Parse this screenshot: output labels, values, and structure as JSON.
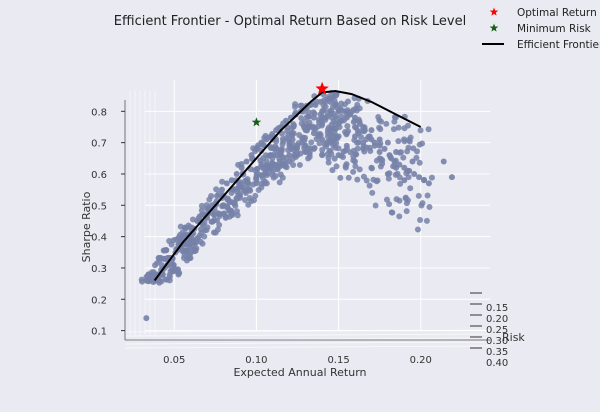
{
  "chart_data": {
    "type": "scatter",
    "title": "Efficient Frontier - Optimal Return Based on Risk Level",
    "xlabel": "Expected Annual Return",
    "ylabel": "Sharpe Ratio",
    "zlabel": "Risk",
    "xlim": [
      0.02,
      0.23
    ],
    "ylim": [
      0.07,
      0.9
    ],
    "x_ticks": [
      0.05,
      0.1,
      0.15,
      0.2
    ],
    "x_tick_labels": [
      "0.05",
      "0.10",
      "0.15",
      "0.20"
    ],
    "y_ticks": [
      0.1,
      0.2,
      0.3,
      0.4,
      0.5,
      0.6,
      0.7,
      0.8
    ],
    "y_tick_labels": [
      "0.1",
      "0.2",
      "0.3",
      "0.4",
      "0.5",
      "0.6",
      "0.7",
      "0.8"
    ],
    "z_tick_labels": [
      "0.15",
      "0.20",
      "0.25",
      "0.30",
      "0.35",
      "0.40"
    ],
    "grid": true,
    "legend_position": "top-right",
    "legend": [
      {
        "label": "Optimal Return",
        "kind": "star",
        "color": "#ff0000"
      },
      {
        "label": "Minimum Risk",
        "kind": "star",
        "color": "#1a5c1a"
      },
      {
        "label": "Efficient Frontier",
        "kind": "line",
        "color": "#000000"
      }
    ],
    "colors": {
      "background": "#eaeaf2",
      "points": "#7581a8",
      "frontier": "#000000",
      "optimal": "#ff0000",
      "min_risk": "#1a5c1a",
      "grid": "#ffffff",
      "text": "#333333"
    },
    "series": [
      {
        "name": "Efficient Frontier",
        "role": "frontier",
        "x": [
          0.038,
          0.045,
          0.055,
          0.065,
          0.075,
          0.085,
          0.095,
          0.105,
          0.115,
          0.125,
          0.133,
          0.14,
          0.148,
          0.158,
          0.17,
          0.185,
          0.2
        ],
        "y": [
          0.26,
          0.31,
          0.38,
          0.44,
          0.5,
          0.56,
          0.62,
          0.68,
          0.74,
          0.79,
          0.83,
          0.86,
          0.865,
          0.855,
          0.83,
          0.79,
          0.75
        ]
      },
      {
        "name": "Optimal Return",
        "role": "optimal",
        "x": [
          0.14
        ],
        "y": [
          0.872
        ]
      },
      {
        "name": "Minimum Risk",
        "role": "min_risk",
        "x": [
          0.1
        ],
        "y": [
          0.765
        ]
      }
    ],
    "scatter_points": {
      "x": [
        0.033,
        0.04,
        0.043,
        0.046,
        0.049,
        0.052,
        0.055,
        0.058,
        0.061,
        0.064,
        0.067,
        0.07,
        0.073,
        0.076,
        0.079,
        0.082,
        0.085,
        0.088,
        0.091,
        0.094,
        0.097,
        0.1,
        0.103,
        0.106,
        0.109,
        0.112,
        0.115,
        0.118,
        0.121,
        0.124,
        0.127,
        0.13,
        0.133,
        0.136,
        0.139,
        0.142,
        0.145,
        0.148,
        0.151,
        0.154,
        0.157,
        0.16,
        0.163,
        0.166,
        0.169,
        0.172,
        0.175,
        0.178,
        0.181,
        0.184,
        0.187,
        0.19,
        0.193,
        0.196,
        0.199,
        0.202,
        0.205,
        0.214,
        0.219,
        0.07,
        0.08,
        0.09,
        0.1,
        0.11,
        0.12,
        0.13,
        0.14,
        0.15,
        0.16,
        0.085,
        0.095,
        0.105,
        0.115,
        0.125,
        0.135,
        0.145,
        0.155,
        0.165,
        0.175,
        0.185,
        0.09,
        0.1,
        0.11,
        0.12,
        0.13,
        0.14,
        0.15,
        0.16,
        0.17,
        0.18,
        0.19,
        0.105,
        0.115,
        0.125,
        0.135,
        0.145,
        0.155,
        0.165,
        0.175,
        0.12,
        0.13,
        0.14,
        0.15,
        0.16,
        0.17,
        0.135,
        0.145,
        0.155,
        0.165,
        0.175,
        0.185,
        0.195,
        0.14,
        0.15,
        0.16,
        0.17,
        0.18,
        0.112,
        0.122,
        0.132,
        0.142,
        0.152,
        0.162,
        0.172,
        0.182,
        0.192
      ],
      "y": [
        0.14,
        0.27,
        0.28,
        0.31,
        0.33,
        0.36,
        0.38,
        0.4,
        0.42,
        0.45,
        0.47,
        0.49,
        0.5,
        0.53,
        0.55,
        0.57,
        0.58,
        0.6,
        0.62,
        0.64,
        0.66,
        0.68,
        0.7,
        0.71,
        0.72,
        0.74,
        0.75,
        0.77,
        0.78,
        0.79,
        0.8,
        0.81,
        0.82,
        0.82,
        0.83,
        0.83,
        0.83,
        0.82,
        0.81,
        0.8,
        0.79,
        0.77,
        0.76,
        0.74,
        0.72,
        0.7,
        0.69,
        0.68,
        0.66,
        0.64,
        0.63,
        0.62,
        0.61,
        0.6,
        0.59,
        0.58,
        0.57,
        0.64,
        0.59,
        0.46,
        0.5,
        0.56,
        0.59,
        0.63,
        0.66,
        0.69,
        0.71,
        0.72,
        0.72,
        0.51,
        0.55,
        0.6,
        0.63,
        0.66,
        0.68,
        0.7,
        0.69,
        0.68,
        0.65,
        0.62,
        0.53,
        0.57,
        0.61,
        0.64,
        0.67,
        0.66,
        0.66,
        0.64,
        0.62,
        0.6,
        0.58,
        0.62,
        0.66,
        0.69,
        0.73,
        0.74,
        0.73,
        0.7,
        0.67,
        0.7,
        0.74,
        0.76,
        0.76,
        0.75,
        0.71,
        0.78,
        0.79,
        0.78,
        0.75,
        0.71,
        0.67,
        0.64,
        0.8,
        0.8,
        0.78,
        0.74,
        0.7,
        0.66,
        0.71,
        0.75,
        0.78,
        0.77,
        0.73,
        0.69,
        0.65,
        0.61
      ]
    }
  }
}
